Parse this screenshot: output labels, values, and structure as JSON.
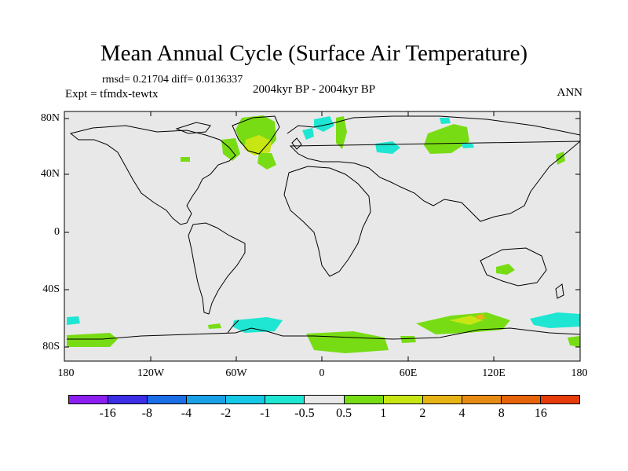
{
  "title": "Mean Annual Cycle (Surface Air Temperature)",
  "stats": "rmsd= 0.21704 diff= 0.0136337",
  "experiment": "Expt = tfmdx-tewtx",
  "period": "2004kyr BP - 2004kyr BP",
  "season": "ANN",
  "y_axis_labels": [
    "80N",
    "40N",
    "0",
    "40S",
    "80S"
  ],
  "x_axis_labels": [
    "180",
    "120W",
    "60W",
    "0",
    "60E",
    "120E",
    "180"
  ],
  "colorbar": {
    "colors": [
      "#8c1ef0",
      "#3c2ee6",
      "#1a6ee6",
      "#1aa0e6",
      "#14c8e6",
      "#1ee6d2",
      "#e8e8e8",
      "#78dc14",
      "#c8e614",
      "#e6b414",
      "#e68c14",
      "#e6640a",
      "#e63c0a"
    ],
    "labels": [
      "-16",
      "-8",
      "-4",
      "-2",
      "-1",
      "-0.5",
      "0.5",
      "1",
      "2",
      "4",
      "8",
      "16"
    ]
  },
  "colors": {
    "ocean_background": "#e8e8e8",
    "positive": "#78dc14",
    "warm": "#c8e614",
    "negative": "#1ee6d2",
    "strong_positive": "#e6b414"
  }
}
